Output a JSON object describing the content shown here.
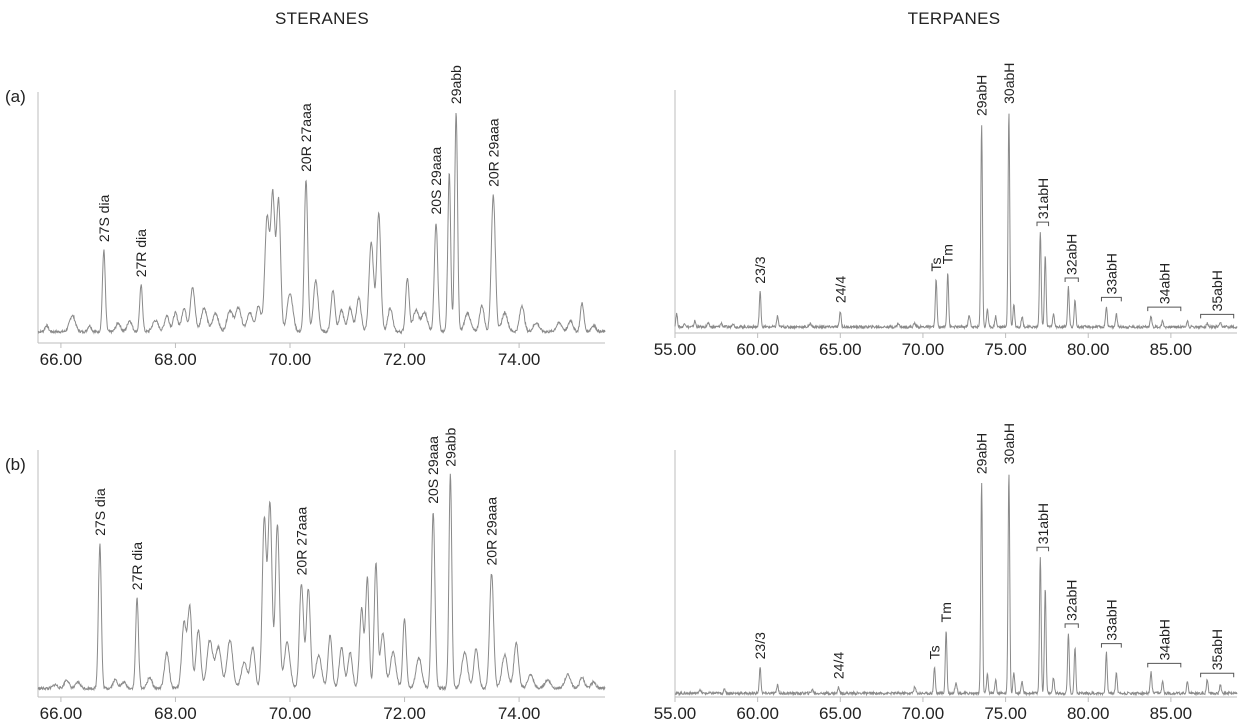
{
  "figure": {
    "section_titles": [
      "STERANES",
      "TERPANES"
    ],
    "row_labels": [
      "(a)",
      "(b)"
    ]
  },
  "chart_data": [
    {
      "id": "a-steranes",
      "type": "line",
      "title": "STERANES",
      "row_label": "(a)",
      "xlim": [
        65.6,
        75.5
      ],
      "ylim": [
        0,
        100
      ],
      "xticks": [
        66,
        68,
        70,
        72,
        74
      ],
      "xtick_labels": [
        "66.00",
        "68.00",
        "70.00",
        "72.00",
        "74.00"
      ],
      "baseline": 4.5,
      "peaks": [
        {
          "x": 65.75,
          "y": 7,
          "w": 0.03
        },
        {
          "x": 66.2,
          "y": 11,
          "w": 0.05
        },
        {
          "x": 66.5,
          "y": 7,
          "w": 0.03
        },
        {
          "x": 66.75,
          "y": 37,
          "w": 0.025
        },
        {
          "x": 67.0,
          "y": 8,
          "w": 0.04
        },
        {
          "x": 67.2,
          "y": 9,
          "w": 0.04
        },
        {
          "x": 67.4,
          "y": 23,
          "w": 0.025
        },
        {
          "x": 67.65,
          "y": 9,
          "w": 0.05
        },
        {
          "x": 67.85,
          "y": 11,
          "w": 0.04
        },
        {
          "x": 68.0,
          "y": 12,
          "w": 0.04
        },
        {
          "x": 68.15,
          "y": 14,
          "w": 0.04
        },
        {
          "x": 68.3,
          "y": 22,
          "w": 0.04
        },
        {
          "x": 68.5,
          "y": 14,
          "w": 0.05
        },
        {
          "x": 68.7,
          "y": 12,
          "w": 0.05
        },
        {
          "x": 68.95,
          "y": 13,
          "w": 0.05
        },
        {
          "x": 69.1,
          "y": 14,
          "w": 0.05
        },
        {
          "x": 69.3,
          "y": 12,
          "w": 0.05
        },
        {
          "x": 69.45,
          "y": 15,
          "w": 0.04
        },
        {
          "x": 69.6,
          "y": 50,
          "w": 0.04
        },
        {
          "x": 69.7,
          "y": 58,
          "w": 0.035
        },
        {
          "x": 69.8,
          "y": 57,
          "w": 0.035
        },
        {
          "x": 70.0,
          "y": 20,
          "w": 0.05
        },
        {
          "x": 70.28,
          "y": 65,
          "w": 0.03
        },
        {
          "x": 70.45,
          "y": 25,
          "w": 0.04
        },
        {
          "x": 70.75,
          "y": 21,
          "w": 0.035
        },
        {
          "x": 70.9,
          "y": 13,
          "w": 0.04
        },
        {
          "x": 71.05,
          "y": 14,
          "w": 0.04
        },
        {
          "x": 71.2,
          "y": 18,
          "w": 0.04
        },
        {
          "x": 71.42,
          "y": 40,
          "w": 0.04
        },
        {
          "x": 71.55,
          "y": 52,
          "w": 0.035
        },
        {
          "x": 71.75,
          "y": 14,
          "w": 0.04
        },
        {
          "x": 72.05,
          "y": 26,
          "w": 0.03
        },
        {
          "x": 72.2,
          "y": 13,
          "w": 0.05
        },
        {
          "x": 72.35,
          "y": 12,
          "w": 0.05
        },
        {
          "x": 72.55,
          "y": 48,
          "w": 0.03
        },
        {
          "x": 72.78,
          "y": 68,
          "w": 0.025
        },
        {
          "x": 72.9,
          "y": 92,
          "w": 0.025
        },
        {
          "x": 73.1,
          "y": 12,
          "w": 0.05
        },
        {
          "x": 73.35,
          "y": 15,
          "w": 0.04
        },
        {
          "x": 73.55,
          "y": 59,
          "w": 0.035
        },
        {
          "x": 73.75,
          "y": 12,
          "w": 0.05
        },
        {
          "x": 74.05,
          "y": 15,
          "w": 0.04
        },
        {
          "x": 74.3,
          "y": 8,
          "w": 0.05
        },
        {
          "x": 74.7,
          "y": 8,
          "w": 0.05
        },
        {
          "x": 74.9,
          "y": 9,
          "w": 0.04
        },
        {
          "x": 75.1,
          "y": 16,
          "w": 0.03
        },
        {
          "x": 75.3,
          "y": 7,
          "w": 0.04
        }
      ],
      "annotations": [
        {
          "label": "27S dia",
          "x": 66.75,
          "y": 37
        },
        {
          "label": "27R dia",
          "x": 67.4,
          "y": 23
        },
        {
          "label": "20R 27aaa",
          "x": 70.28,
          "y": 65
        },
        {
          "label": "20S 29aaa",
          "x": 72.55,
          "y": 48
        },
        {
          "label": "29abb",
          "x": 72.9,
          "y": 92
        },
        {
          "label": "20R 29aaa",
          "x": 73.55,
          "y": 59
        }
      ]
    },
    {
      "id": "a-terpanes",
      "type": "line",
      "title": "TERPANES",
      "row_label": "(a)",
      "xlim": [
        55,
        89
      ],
      "ylim": [
        0,
        100
      ],
      "xticks": [
        55,
        60,
        65,
        70,
        75,
        80,
        85
      ],
      "xtick_labels": [
        "55.00",
        "60.00",
        "65.00",
        "70.00",
        "75.00",
        "80.00",
        "85.00"
      ],
      "baseline": 2.5,
      "peaks": [
        {
          "x": 55.1,
          "y": 8,
          "w": 0.05
        },
        {
          "x": 55.6,
          "y": 4,
          "w": 0.06
        },
        {
          "x": 56.2,
          "y": 5,
          "w": 0.05
        },
        {
          "x": 57.0,
          "y": 4,
          "w": 0.06
        },
        {
          "x": 57.8,
          "y": 4,
          "w": 0.06
        },
        {
          "x": 58.5,
          "y": 4,
          "w": 0.06
        },
        {
          "x": 60.15,
          "y": 17,
          "w": 0.05
        },
        {
          "x": 61.2,
          "y": 7,
          "w": 0.05
        },
        {
          "x": 63.2,
          "y": 4,
          "w": 0.06
        },
        {
          "x": 65.0,
          "y": 9,
          "w": 0.05
        },
        {
          "x": 68.5,
          "y": 4,
          "w": 0.06
        },
        {
          "x": 69.5,
          "y": 4,
          "w": 0.06
        },
        {
          "x": 70.8,
          "y": 22,
          "w": 0.05
        },
        {
          "x": 71.5,
          "y": 25,
          "w": 0.05
        },
        {
          "x": 72.8,
          "y": 7,
          "w": 0.06
        },
        {
          "x": 73.55,
          "y": 86,
          "w": 0.05
        },
        {
          "x": 73.9,
          "y": 10,
          "w": 0.05
        },
        {
          "x": 74.4,
          "y": 7,
          "w": 0.05
        },
        {
          "x": 75.2,
          "y": 91,
          "w": 0.05
        },
        {
          "x": 75.5,
          "y": 12,
          "w": 0.05
        },
        {
          "x": 76.0,
          "y": 7,
          "w": 0.05
        },
        {
          "x": 77.1,
          "y": 42,
          "w": 0.05
        },
        {
          "x": 77.4,
          "y": 32,
          "w": 0.05
        },
        {
          "x": 77.9,
          "y": 8,
          "w": 0.05
        },
        {
          "x": 78.8,
          "y": 19,
          "w": 0.05
        },
        {
          "x": 79.2,
          "y": 14,
          "w": 0.05
        },
        {
          "x": 81.1,
          "y": 11,
          "w": 0.05
        },
        {
          "x": 81.7,
          "y": 8,
          "w": 0.05
        },
        {
          "x": 83.8,
          "y": 7,
          "w": 0.05
        },
        {
          "x": 84.5,
          "y": 5,
          "w": 0.05
        },
        {
          "x": 86.0,
          "y": 5,
          "w": 0.05
        },
        {
          "x": 87.2,
          "y": 4,
          "w": 0.05
        },
        {
          "x": 88.0,
          "y": 4,
          "w": 0.05
        }
      ],
      "annotations": [
        {
          "label": "23/3",
          "x": 60.15,
          "y": 17
        },
        {
          "label": "24/4",
          "x": 65.0,
          "y": 9
        },
        {
          "label": "Ts",
          "x": 70.8,
          "y": 22
        },
        {
          "label": "Tm",
          "x": 71.5,
          "y": 25
        },
        {
          "label": "29abH",
          "x": 73.55,
          "y": 86
        },
        {
          "label": "30abH",
          "x": 75.2,
          "y": 91
        }
      ],
      "bracket_labels": [
        {
          "label": "31abH",
          "x1": 76.9,
          "x2": 77.6,
          "y": 44
        },
        {
          "label": "32abH",
          "x1": 78.6,
          "x2": 79.4,
          "y": 21
        },
        {
          "label": "33abH",
          "x1": 80.8,
          "x2": 82.0,
          "y": 13
        },
        {
          "label": "34abH",
          "x1": 83.6,
          "x2": 85.6,
          "y": 9
        },
        {
          "label": "35abH",
          "x1": 86.8,
          "x2": 88.8,
          "y": 6
        }
      ]
    },
    {
      "id": "b-steranes",
      "type": "line",
      "title": "STERANES",
      "row_label": "(b)",
      "xlim": [
        65.6,
        75.5
      ],
      "ylim": [
        0,
        100
      ],
      "xticks": [
        66,
        68,
        70,
        72,
        74
      ],
      "xtick_labels": [
        "66.00",
        "68.00",
        "70.00",
        "72.00",
        "74.00"
      ],
      "baseline": 3.5,
      "peaks": [
        {
          "x": 65.9,
          "y": 5,
          "w": 0.04
        },
        {
          "x": 66.1,
          "y": 7,
          "w": 0.04
        },
        {
          "x": 66.3,
          "y": 6,
          "w": 0.04
        },
        {
          "x": 66.68,
          "y": 62,
          "w": 0.025
        },
        {
          "x": 66.95,
          "y": 7,
          "w": 0.04
        },
        {
          "x": 67.1,
          "y": 6,
          "w": 0.04
        },
        {
          "x": 67.33,
          "y": 40,
          "w": 0.025
        },
        {
          "x": 67.55,
          "y": 8,
          "w": 0.04
        },
        {
          "x": 67.85,
          "y": 18,
          "w": 0.04
        },
        {
          "x": 68.15,
          "y": 30,
          "w": 0.04
        },
        {
          "x": 68.25,
          "y": 36,
          "w": 0.035
        },
        {
          "x": 68.4,
          "y": 27,
          "w": 0.04
        },
        {
          "x": 68.6,
          "y": 23,
          "w": 0.05
        },
        {
          "x": 68.75,
          "y": 20,
          "w": 0.05
        },
        {
          "x": 68.95,
          "y": 23,
          "w": 0.05
        },
        {
          "x": 69.2,
          "y": 14,
          "w": 0.05
        },
        {
          "x": 69.35,
          "y": 20,
          "w": 0.04
        },
        {
          "x": 69.55,
          "y": 72,
          "w": 0.035
        },
        {
          "x": 69.65,
          "y": 78,
          "w": 0.035
        },
        {
          "x": 69.78,
          "y": 70,
          "w": 0.035
        },
        {
          "x": 69.95,
          "y": 22,
          "w": 0.05
        },
        {
          "x": 70.2,
          "y": 46,
          "w": 0.035
        },
        {
          "x": 70.32,
          "y": 44,
          "w": 0.035
        },
        {
          "x": 70.5,
          "y": 17,
          "w": 0.05
        },
        {
          "x": 70.7,
          "y": 25,
          "w": 0.035
        },
        {
          "x": 70.9,
          "y": 20,
          "w": 0.04
        },
        {
          "x": 71.05,
          "y": 18,
          "w": 0.04
        },
        {
          "x": 71.25,
          "y": 36,
          "w": 0.035
        },
        {
          "x": 71.35,
          "y": 48,
          "w": 0.03
        },
        {
          "x": 71.5,
          "y": 54,
          "w": 0.03
        },
        {
          "x": 71.62,
          "y": 26,
          "w": 0.04
        },
        {
          "x": 71.8,
          "y": 18,
          "w": 0.05
        },
        {
          "x": 72.0,
          "y": 32,
          "w": 0.03
        },
        {
          "x": 72.25,
          "y": 16,
          "w": 0.05
        },
        {
          "x": 72.5,
          "y": 75,
          "w": 0.03
        },
        {
          "x": 72.8,
          "y": 90,
          "w": 0.025
        },
        {
          "x": 73.05,
          "y": 18,
          "w": 0.05
        },
        {
          "x": 73.25,
          "y": 20,
          "w": 0.04
        },
        {
          "x": 73.52,
          "y": 50,
          "w": 0.035
        },
        {
          "x": 73.75,
          "y": 17,
          "w": 0.05
        },
        {
          "x": 73.95,
          "y": 22,
          "w": 0.04
        },
        {
          "x": 74.2,
          "y": 9,
          "w": 0.05
        },
        {
          "x": 74.5,
          "y": 7,
          "w": 0.05
        },
        {
          "x": 74.85,
          "y": 9,
          "w": 0.05
        },
        {
          "x": 75.1,
          "y": 8,
          "w": 0.04
        },
        {
          "x": 75.3,
          "y": 6,
          "w": 0.04
        }
      ],
      "annotations": [
        {
          "label": "27S dia",
          "x": 66.68,
          "y": 62
        },
        {
          "label": "27R dia",
          "x": 67.33,
          "y": 40
        },
        {
          "label": "20R 27aaa",
          "x": 70.2,
          "y": 46
        },
        {
          "label": "20S 29aaa",
          "x": 72.5,
          "y": 75
        },
        {
          "label": "29abb",
          "x": 72.8,
          "y": 90
        },
        {
          "label": "20R 29aaa",
          "x": 73.52,
          "y": 50
        }
      ]
    },
    {
      "id": "b-terpanes",
      "type": "line",
      "title": "TERPANES",
      "row_label": "(b)",
      "xlim": [
        55,
        89
      ],
      "ylim": [
        0,
        100
      ],
      "xticks": [
        55,
        60,
        65,
        70,
        75,
        80,
        85
      ],
      "xtick_labels": [
        "55.00",
        "60.00",
        "65.00",
        "70.00",
        "75.00",
        "80.00",
        "85.00"
      ],
      "baseline": 1.5,
      "peaks": [
        {
          "x": 56.5,
          "y": 3,
          "w": 0.06
        },
        {
          "x": 58.0,
          "y": 3,
          "w": 0.06
        },
        {
          "x": 60.15,
          "y": 12,
          "w": 0.05
        },
        {
          "x": 61.2,
          "y": 5,
          "w": 0.05
        },
        {
          "x": 63.3,
          "y": 3,
          "w": 0.06
        },
        {
          "x": 64.9,
          "y": 4,
          "w": 0.05
        },
        {
          "x": 69.5,
          "y": 4,
          "w": 0.06
        },
        {
          "x": 70.7,
          "y": 12,
          "w": 0.05
        },
        {
          "x": 71.4,
          "y": 27,
          "w": 0.05
        },
        {
          "x": 72.0,
          "y": 6,
          "w": 0.06
        },
        {
          "x": 73.55,
          "y": 87,
          "w": 0.05
        },
        {
          "x": 73.9,
          "y": 9,
          "w": 0.05
        },
        {
          "x": 74.4,
          "y": 7,
          "w": 0.05
        },
        {
          "x": 75.2,
          "y": 91,
          "w": 0.05
        },
        {
          "x": 75.5,
          "y": 10,
          "w": 0.05
        },
        {
          "x": 76.0,
          "y": 6,
          "w": 0.05
        },
        {
          "x": 77.1,
          "y": 57,
          "w": 0.05
        },
        {
          "x": 77.4,
          "y": 44,
          "w": 0.05
        },
        {
          "x": 77.9,
          "y": 8,
          "w": 0.05
        },
        {
          "x": 78.8,
          "y": 26,
          "w": 0.05
        },
        {
          "x": 79.2,
          "y": 20,
          "w": 0.05
        },
        {
          "x": 81.1,
          "y": 18,
          "w": 0.05
        },
        {
          "x": 81.7,
          "y": 10,
          "w": 0.05
        },
        {
          "x": 83.8,
          "y": 10,
          "w": 0.05
        },
        {
          "x": 84.5,
          "y": 6,
          "w": 0.05
        },
        {
          "x": 86.0,
          "y": 6,
          "w": 0.05
        },
        {
          "x": 87.2,
          "y": 7,
          "w": 0.05
        },
        {
          "x": 88.0,
          "y": 5,
          "w": 0.05
        }
      ],
      "annotations": [
        {
          "label": "23/3",
          "x": 60.15,
          "y": 12
        },
        {
          "label": "24/4",
          "x": 64.9,
          "y": 4
        },
        {
          "label": "Ts",
          "x": 70.7,
          "y": 12
        },
        {
          "label": "Tm",
          "x": 71.4,
          "y": 27
        },
        {
          "label": "29abH",
          "x": 73.55,
          "y": 87
        },
        {
          "label": "30abH",
          "x": 75.2,
          "y": 91
        }
      ],
      "bracket_labels": [
        {
          "label": "31abH",
          "x1": 76.9,
          "x2": 77.6,
          "y": 59
        },
        {
          "label": "32abH",
          "x1": 78.6,
          "x2": 79.4,
          "y": 28
        },
        {
          "label": "33abH",
          "x1": 80.8,
          "x2": 82.0,
          "y": 20
        },
        {
          "label": "34abH",
          "x1": 83.6,
          "x2": 85.6,
          "y": 12
        },
        {
          "label": "35abH",
          "x1": 86.8,
          "x2": 88.8,
          "y": 8
        }
      ]
    }
  ]
}
